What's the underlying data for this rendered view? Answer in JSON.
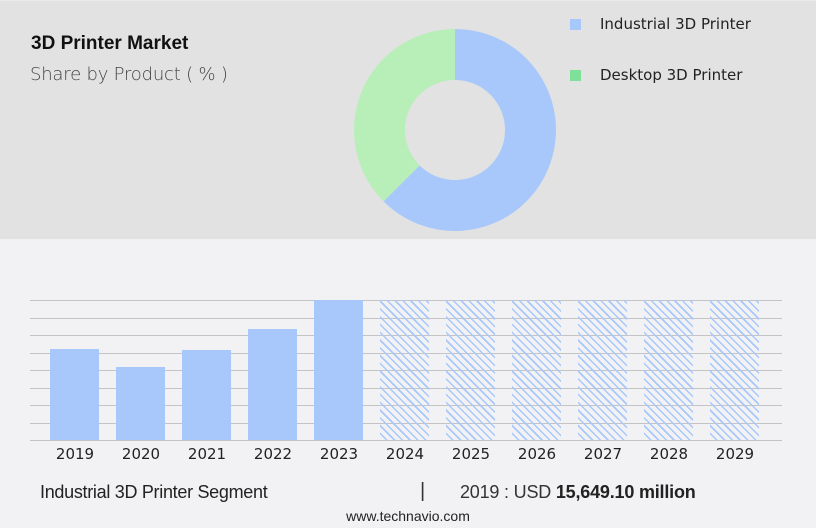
{
  "header": {
    "title": "3D Printer Market",
    "subtitle": "Share by Product ( % )"
  },
  "legend": [
    {
      "label": "Industrial 3D Printer",
      "color": "#a8c8fc"
    },
    {
      "label": "Desktop 3D Printer",
      "color": "#7fe09a"
    }
  ],
  "footer": {
    "segment": "Industrial 3D Printer Segment",
    "separator": "|",
    "value_prefix": "2019 : USD ",
    "value_bold": "15,649.10 million",
    "url": "www.technavio.com"
  },
  "chart_data": [
    {
      "type": "pie",
      "title": "3D Printer Market",
      "subtitle": "Share by Product ( % )",
      "donut": true,
      "categories": [
        "Industrial 3D Printer",
        "Desktop 3D Printer"
      ],
      "values": [
        62.5,
        37.5
      ],
      "colors": [
        "#a8c8fc",
        "#b8eeb8"
      ],
      "legend_position": "right"
    },
    {
      "type": "bar",
      "title": "Industrial 3D Printer Segment",
      "categories": [
        "2019",
        "2020",
        "2021",
        "2022",
        "2023",
        "2024",
        "2025",
        "2026",
        "2027",
        "2028",
        "2029"
      ],
      "values": [
        15649.1,
        12555,
        15477,
        19085,
        24071,
        null,
        null,
        null,
        null,
        null,
        null
      ],
      "forecast": [
        false,
        false,
        false,
        false,
        false,
        true,
        true,
        true,
        true,
        true,
        true
      ],
      "annotation": "2019 : USD 15,649.10 million",
      "xlabel": "",
      "ylabel": "",
      "grid": true,
      "color": "#a8c8fc"
    }
  ],
  "bars": [
    {
      "year": "2019",
      "rel": 91,
      "forecast": false
    },
    {
      "year": "2020",
      "rel": 73,
      "forecast": false
    },
    {
      "year": "2021",
      "rel": 90,
      "forecast": false
    },
    {
      "year": "2022",
      "rel": 111,
      "forecast": false
    },
    {
      "year": "2023",
      "rel": 140,
      "forecast": false
    },
    {
      "year": "2024",
      "rel": 140,
      "forecast": true
    },
    {
      "year": "2025",
      "rel": 140,
      "forecast": true
    },
    {
      "year": "2026",
      "rel": 140,
      "forecast": true
    },
    {
      "year": "2027",
      "rel": 140,
      "forecast": true
    },
    {
      "year": "2028",
      "rel": 140,
      "forecast": true
    },
    {
      "year": "2029",
      "rel": 140,
      "forecast": true
    }
  ]
}
